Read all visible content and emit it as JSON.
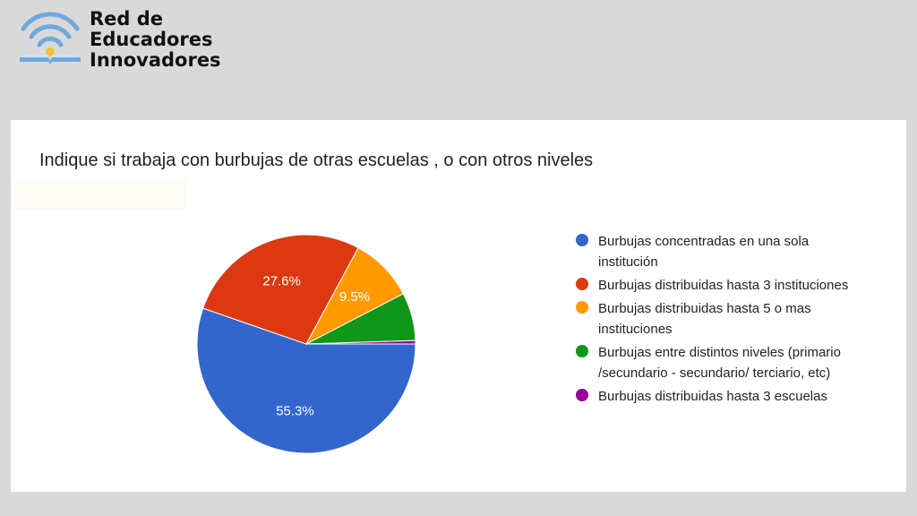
{
  "brand": {
    "lines": [
      "Red de",
      "Educadores",
      "Innovadores"
    ],
    "icon": "wifi-book-icon"
  },
  "chart_data": {
    "type": "pie",
    "title": "Indique si trabaja con burbujas de otras escuelas , o con otros niveles",
    "legend_position": "right",
    "slices": [
      {
        "label": "Burbujas concentradas en una sola institución",
        "value": 55.3,
        "display": "55.3%",
        "color": "#3366cc"
      },
      {
        "label": "Burbujas distribuidas hasta 3 instituciones",
        "value": 27.6,
        "display": "27.6%",
        "color": "#dc3912"
      },
      {
        "label": "Burbujas distribuidas hasta 5 o mas instituciones",
        "value": 9.5,
        "display": "9.5%",
        "color": "#ff9900"
      },
      {
        "label": "Burbujas entre distintos niveles (primario /secundario - secundario/ terciario, etc)",
        "value": 7.1,
        "display": "",
        "color": "#109618"
      },
      {
        "label": "Burbujas distribuidas hasta 3 escuelas",
        "value": 0.5,
        "display": "",
        "color": "#990099"
      }
    ]
  }
}
